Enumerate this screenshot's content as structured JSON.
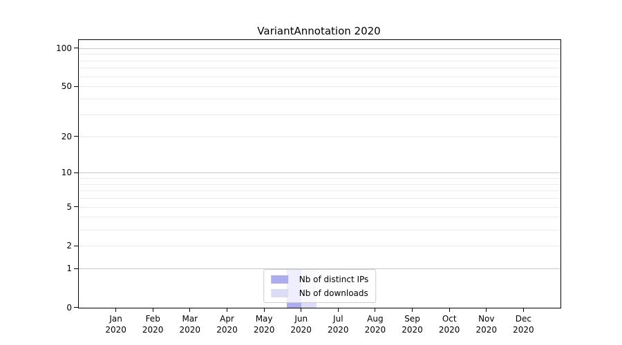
{
  "chart_data": {
    "type": "bar",
    "title": "VariantAnnotation 2020",
    "categories": [
      "Jan 2020",
      "Feb 2020",
      "Mar 2020",
      "Apr 2020",
      "May 2020",
      "Jun 2020",
      "Jul 2020",
      "Aug 2020",
      "Sep 2020",
      "Oct 2020",
      "Nov 2020",
      "Dec 2020"
    ],
    "x_axis": {
      "months": [
        "Jan",
        "Feb",
        "Mar",
        "Apr",
        "May",
        "Jun",
        "Jul",
        "Aug",
        "Sep",
        "Oct",
        "Nov",
        "Dec"
      ],
      "year": "2020"
    },
    "y_axis": {
      "scale": "log10(1+y)",
      "labeled_ticks": [
        0,
        1,
        2,
        5,
        10,
        20,
        50,
        100
      ],
      "major_gridlines": [
        1,
        10,
        100
      ],
      "minor_gridlines": [
        3,
        4,
        6,
        7,
        8,
        9,
        30,
        40,
        60,
        70,
        80,
        90
      ],
      "ylim": [
        0,
        116
      ]
    },
    "series": [
      {
        "name": "Nb of distinct IPs",
        "color": "#acacee",
        "values": [
          0,
          0,
          0,
          0,
          0,
          1,
          0,
          0,
          0,
          0,
          0,
          0
        ]
      },
      {
        "name": "Nb of downloads",
        "color": "#dcdcf6",
        "values": [
          0,
          0,
          0,
          0,
          0,
          1,
          0,
          0,
          0,
          0,
          0,
          0
        ]
      }
    ],
    "legend": {
      "position": "lower center",
      "entries": [
        "Nb of distinct IPs",
        "Nb of downloads"
      ]
    },
    "grid": true,
    "colors": {
      "major_grid": "#c9c9c9",
      "minor_grid": "#ebebeb",
      "axis": "#000000",
      "background": "#ffffff"
    }
  }
}
